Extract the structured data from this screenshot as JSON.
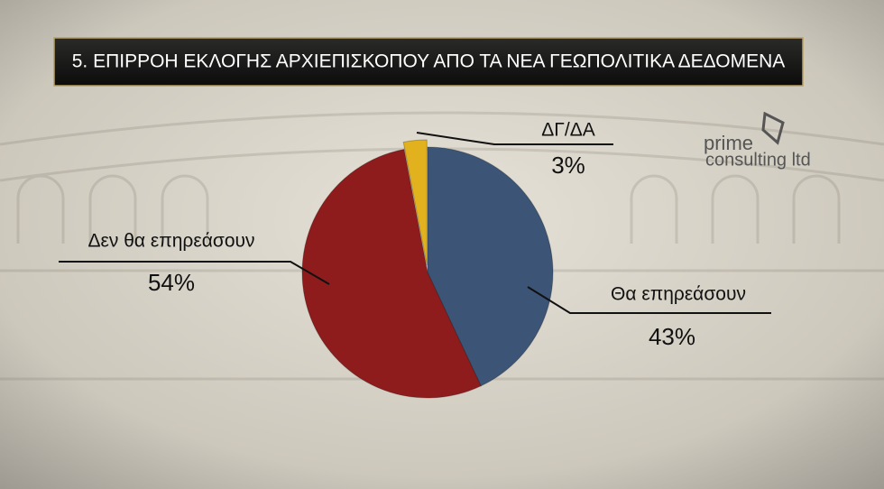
{
  "chart_data": {
    "type": "pie",
    "title": "5. ΕΠΙΡΡΟΗ ΕΚΛΟΓΗΣ ΑΡΧΙΕΠΙΣΚΟΠΟΥ ΑΠΟ ΤΑ ΝΕΑ ΓΕΩΠΟΛΙΤΙΚΑ ΔΕΔΟΜΕΝΑ",
    "categories": [
      "Θα επηρεάσουν",
      "Δεν θα επηρεάσουν",
      "ΔΓ/ΔΑ"
    ],
    "values": [
      43,
      54,
      3
    ],
    "value_labels": [
      "43%",
      "54%",
      "3%"
    ],
    "colors": [
      "#3c5476",
      "#8e1c1c",
      "#e2b21e"
    ]
  },
  "logo": {
    "line1": "prime",
    "line2": "consulting ltd"
  }
}
